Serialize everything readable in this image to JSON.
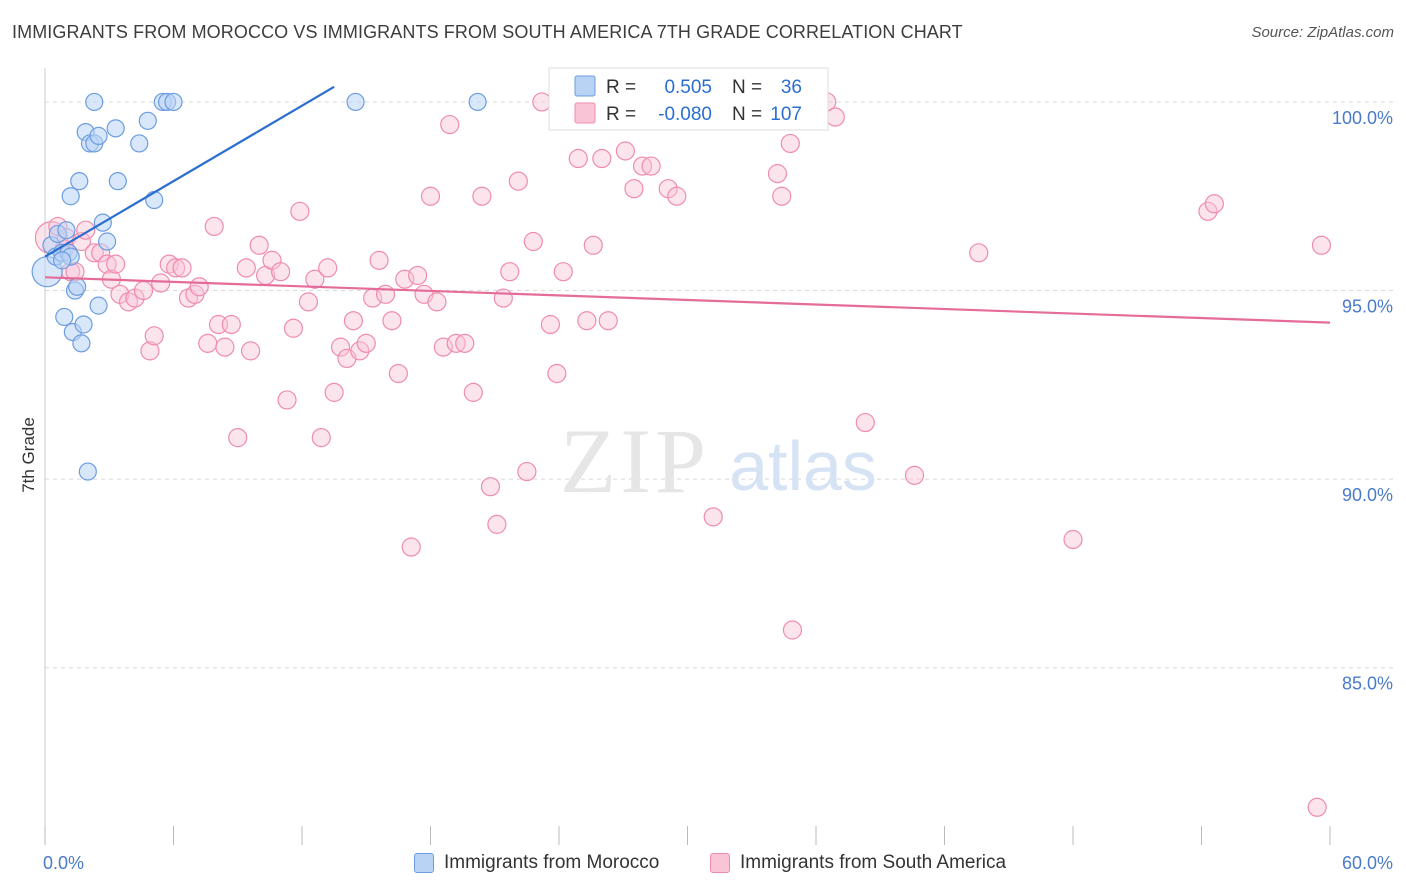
{
  "title": "IMMIGRANTS FROM MOROCCO VS IMMIGRANTS FROM SOUTH AMERICA 7TH GRADE CORRELATION CHART",
  "source": "Source: ZipAtlas.com",
  "watermark": {
    "zip": "ZIP",
    "atlas": "atlas"
  },
  "colors": {
    "morocco_fill": "#b9d3f5",
    "morocco_stroke": "#6c9de0",
    "morocco_line": "#2a6fd0",
    "sa_fill": "#f9c4d6",
    "sa_stroke": "#ef8cae",
    "sa_line": "#e56b98",
    "tick_text": "#4a7bc8",
    "grid": "#d8d8d8"
  },
  "legend": {
    "rows": [
      {
        "r_label": "R =",
        "r_value": "0.505",
        "n_label": "N =",
        "n_value": "36"
      },
      {
        "r_label": "R =",
        "r_value": "-0.080",
        "n_label": "N =",
        "n_value": "107"
      }
    ]
  },
  "bottom_legend": [
    "Immigrants from Morocco",
    "Immigrants from South America"
  ],
  "chart_data": {
    "type": "scatter",
    "title": "IMMIGRANTS FROM MOROCCO VS IMMIGRANTS FROM SOUTH AMERICA 7TH GRADE CORRELATION CHART",
    "xlabel": "",
    "ylabel": "7th Grade",
    "xlim": [
      0,
      60
    ],
    "ylim": [
      80.3,
      100.9
    ],
    "x_tick_labels": [
      "0.0%",
      "60.0%"
    ],
    "y_tick_labels": [
      "100.0%",
      "95.0%",
      "90.0%",
      "85.0%"
    ],
    "y_ticks": [
      100,
      95,
      90,
      85
    ],
    "grid": "horizontal dashed",
    "legend_position": "top-center",
    "series": [
      {
        "name": "Immigrants from Morocco",
        "R": 0.505,
        "N": 36,
        "trend": {
          "x": [
            0.0,
            13.5
          ],
          "y": [
            95.9,
            100.4
          ]
        },
        "points": [
          [
            0.1,
            95.5
          ],
          [
            0.3,
            96.2
          ],
          [
            0.5,
            95.9
          ],
          [
            0.6,
            96.5
          ],
          [
            0.8,
            96.0
          ],
          [
            1.0,
            96.6
          ],
          [
            1.1,
            96.0
          ],
          [
            1.2,
            95.9
          ],
          [
            0.8,
            95.8
          ],
          [
            0.9,
            94.3
          ],
          [
            1.2,
            97.5
          ],
          [
            1.3,
            93.9
          ],
          [
            1.4,
            95.0
          ],
          [
            1.5,
            95.1
          ],
          [
            1.6,
            97.9
          ],
          [
            1.7,
            93.6
          ],
          [
            1.8,
            94.1
          ],
          [
            1.9,
            99.2
          ],
          [
            2.0,
            90.2
          ],
          [
            2.1,
            98.9
          ],
          [
            2.3,
            98.9
          ],
          [
            2.3,
            100.0
          ],
          [
            2.5,
            94.6
          ],
          [
            2.5,
            99.1
          ],
          [
            2.7,
            96.8
          ],
          [
            2.9,
            96.3
          ],
          [
            3.3,
            99.3
          ],
          [
            3.4,
            97.9
          ],
          [
            4.4,
            98.9
          ],
          [
            4.8,
            99.5
          ],
          [
            5.1,
            97.4
          ],
          [
            5.5,
            100.0
          ],
          [
            5.7,
            100.0
          ],
          [
            6.0,
            100.0
          ],
          [
            14.5,
            100.0
          ],
          [
            20.2,
            100.0
          ]
        ]
      },
      {
        "name": "Immigrants from South America",
        "R": -0.08,
        "N": 107,
        "trend": {
          "x": [
            0.0,
            60.0
          ],
          "y": [
            95.35,
            94.15
          ]
        },
        "points": [
          [
            0.3,
            96.4
          ],
          [
            0.6,
            96.7
          ],
          [
            0.9,
            96.1
          ],
          [
            1.0,
            96.4
          ],
          [
            1.2,
            95.5
          ],
          [
            1.4,
            95.5
          ],
          [
            1.7,
            96.3
          ],
          [
            1.9,
            96.6
          ],
          [
            2.3,
            96.0
          ],
          [
            2.6,
            96.0
          ],
          [
            2.9,
            95.7
          ],
          [
            3.1,
            95.3
          ],
          [
            3.3,
            95.7
          ],
          [
            3.5,
            94.9
          ],
          [
            3.9,
            94.7
          ],
          [
            4.2,
            94.8
          ],
          [
            4.6,
            95.0
          ],
          [
            4.9,
            93.4
          ],
          [
            5.1,
            93.8
          ],
          [
            5.4,
            95.2
          ],
          [
            5.8,
            95.7
          ],
          [
            6.1,
            95.6
          ],
          [
            6.4,
            95.6
          ],
          [
            6.7,
            94.8
          ],
          [
            7.0,
            94.9
          ],
          [
            7.2,
            95.1
          ],
          [
            7.6,
            93.6
          ],
          [
            7.9,
            96.7
          ],
          [
            8.1,
            94.1
          ],
          [
            8.4,
            93.5
          ],
          [
            8.7,
            94.1
          ],
          [
            9.0,
            91.1
          ],
          [
            9.4,
            95.6
          ],
          [
            9.6,
            93.4
          ],
          [
            10.0,
            96.2
          ],
          [
            10.3,
            95.4
          ],
          [
            10.6,
            95.8
          ],
          [
            11.0,
            95.5
          ],
          [
            11.3,
            92.1
          ],
          [
            11.6,
            94.0
          ],
          [
            11.9,
            97.1
          ],
          [
            12.3,
            94.7
          ],
          [
            12.6,
            95.3
          ],
          [
            12.9,
            91.1
          ],
          [
            13.2,
            95.6
          ],
          [
            13.5,
            92.3
          ],
          [
            13.8,
            93.5
          ],
          [
            14.1,
            93.2
          ],
          [
            14.4,
            94.2
          ],
          [
            14.7,
            93.4
          ],
          [
            15.0,
            93.6
          ],
          [
            15.3,
            94.8
          ],
          [
            15.6,
            95.8
          ],
          [
            15.9,
            94.9
          ],
          [
            16.2,
            94.2
          ],
          [
            16.5,
            92.8
          ],
          [
            16.8,
            95.3
          ],
          [
            17.1,
            88.2
          ],
          [
            17.4,
            95.4
          ],
          [
            17.7,
            94.9
          ],
          [
            18.0,
            97.5
          ],
          [
            18.3,
            94.7
          ],
          [
            18.6,
            93.5
          ],
          [
            18.9,
            99.4
          ],
          [
            19.2,
            93.6
          ],
          [
            19.6,
            93.6
          ],
          [
            20.0,
            92.3
          ],
          [
            20.4,
            97.5
          ],
          [
            20.8,
            89.8
          ],
          [
            21.1,
            88.8
          ],
          [
            21.4,
            94.8
          ],
          [
            21.7,
            95.5
          ],
          [
            22.1,
            97.9
          ],
          [
            22.5,
            90.2
          ],
          [
            22.8,
            96.3
          ],
          [
            23.2,
            100.0
          ],
          [
            23.6,
            94.1
          ],
          [
            23.9,
            92.8
          ],
          [
            24.2,
            95.5
          ],
          [
            24.5,
            100.0
          ],
          [
            24.9,
            98.5
          ],
          [
            25.3,
            94.2
          ],
          [
            25.6,
            96.2
          ],
          [
            26.0,
            98.5
          ],
          [
            26.3,
            94.2
          ],
          [
            26.7,
            100.0
          ],
          [
            27.1,
            98.7
          ],
          [
            27.5,
            97.7
          ],
          [
            27.9,
            98.3
          ],
          [
            28.3,
            98.3
          ],
          [
            28.7,
            100.0
          ],
          [
            29.1,
            97.7
          ],
          [
            29.5,
            97.5
          ],
          [
            31.2,
            89.0
          ],
          [
            33.4,
            100.0
          ],
          [
            34.2,
            98.1
          ],
          [
            34.4,
            97.5
          ],
          [
            34.8,
            98.9
          ],
          [
            34.9,
            86.0
          ],
          [
            36.5,
            100.0
          ],
          [
            36.9,
            99.6
          ],
          [
            38.3,
            91.5
          ],
          [
            40.6,
            90.1
          ],
          [
            43.6,
            96.0
          ],
          [
            48.0,
            88.4
          ],
          [
            54.3,
            97.1
          ],
          [
            54.6,
            97.3
          ],
          [
            59.4,
            81.3
          ],
          [
            59.6,
            96.2
          ]
        ]
      }
    ]
  }
}
